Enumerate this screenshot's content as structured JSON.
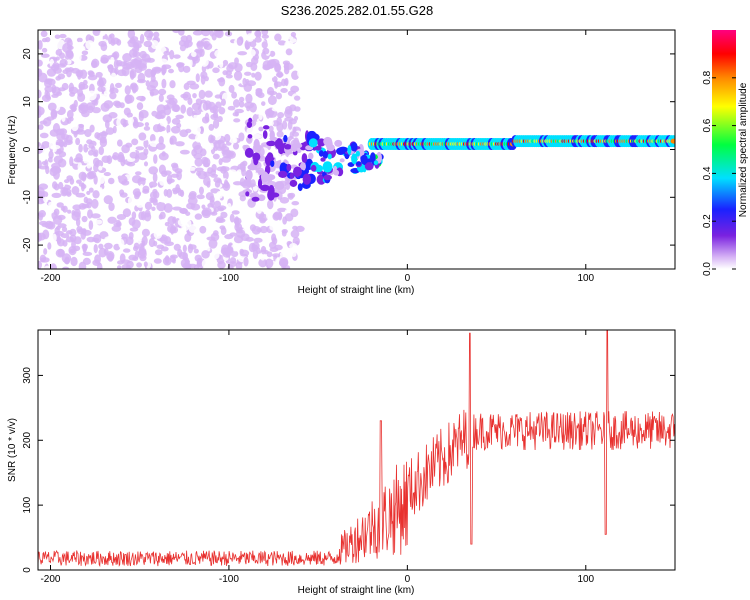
{
  "page": {
    "title": "S236.2025.282.01.55.G28"
  },
  "chart_data": [
    {
      "type": "heatmap",
      "xlabel": "Height of straight line (km)",
      "ylabel": "Frequency (Hz)",
      "xlim": [
        -207,
        150
      ],
      "ylim": [
        -25,
        25
      ],
      "xticks": [
        {
          "v": -200,
          "label": "-200"
        },
        {
          "v": -100,
          "label": "-100"
        },
        {
          "v": 0,
          "label": "0"
        },
        {
          "v": 100,
          "label": "100"
        }
      ],
      "yticks": [
        {
          "v": 20,
          "label": "20"
        },
        {
          "v": 10,
          "label": "10"
        },
        {
          "v": 0,
          "label": "0"
        },
        {
          "v": -10,
          "label": "-10"
        },
        {
          "v": -20,
          "label": "-20"
        }
      ],
      "colorbar": {
        "label": "Normalized spectral amplitude",
        "range": [
          0,
          1
        ],
        "ticks": [
          {
            "v": 0.0,
            "label": "0.0"
          },
          {
            "v": 0.2,
            "label": "0.2"
          },
          {
            "v": 0.4,
            "label": "0.4"
          },
          {
            "v": 0.6,
            "label": "0.6"
          },
          {
            "v": 0.8,
            "label": "0.8"
          }
        ],
        "colors": [
          "#ffffff",
          "#d6b3f5",
          "#7a22e0",
          "#1a22ff",
          "#00e0ff",
          "#00ff40",
          "#ffff00",
          "#ff8800",
          "#ff0000",
          "#ff007f"
        ]
      },
      "signal_band": {
        "x_start": -20,
        "x_end": 150,
        "freq_start": 0.5,
        "freq_end": 1.8,
        "transition_start": -90,
        "noise_region_end": -60
      }
    },
    {
      "type": "line",
      "xlabel": "Height of straight line (km)",
      "ylabel": "SNR (10 * v/v)",
      "xlim": [
        -207,
        150
      ],
      "ylim": [
        0,
        370
      ],
      "xticks": [
        {
          "v": -200,
          "label": "-200"
        },
        {
          "v": -100,
          "label": "-100"
        },
        {
          "v": 0,
          "label": "0"
        },
        {
          "v": 100,
          "label": "100"
        }
      ],
      "yticks": [
        {
          "v": 0,
          "label": "0"
        },
        {
          "v": 100,
          "label": "100"
        },
        {
          "v": 200,
          "label": "200"
        },
        {
          "v": 300,
          "label": "300"
        }
      ],
      "color": "#e8312f",
      "series": [
        {
          "name": "SNR",
          "segments": [
            {
              "x": [
                -207,
                -40
              ],
              "mean": 18,
              "spread": 12
            },
            {
              "x": [
                -40,
                0
              ],
              "mean": 60,
              "spread": 45
            },
            {
              "x": [
                0,
                35
              ],
              "mean": 150,
              "spread": 50
            },
            {
              "x": [
                35,
                150
              ],
              "mean": 215,
              "spread": 30
            }
          ],
          "peaks": [
            {
              "x": -15,
              "y": 230
            },
            {
              "x": 35,
              "y": 365
            },
            {
              "x": 36,
              "y": 40
            },
            {
              "x": 112,
              "y": 370
            },
            {
              "x": 111,
              "y": 55
            }
          ]
        }
      ]
    }
  ]
}
